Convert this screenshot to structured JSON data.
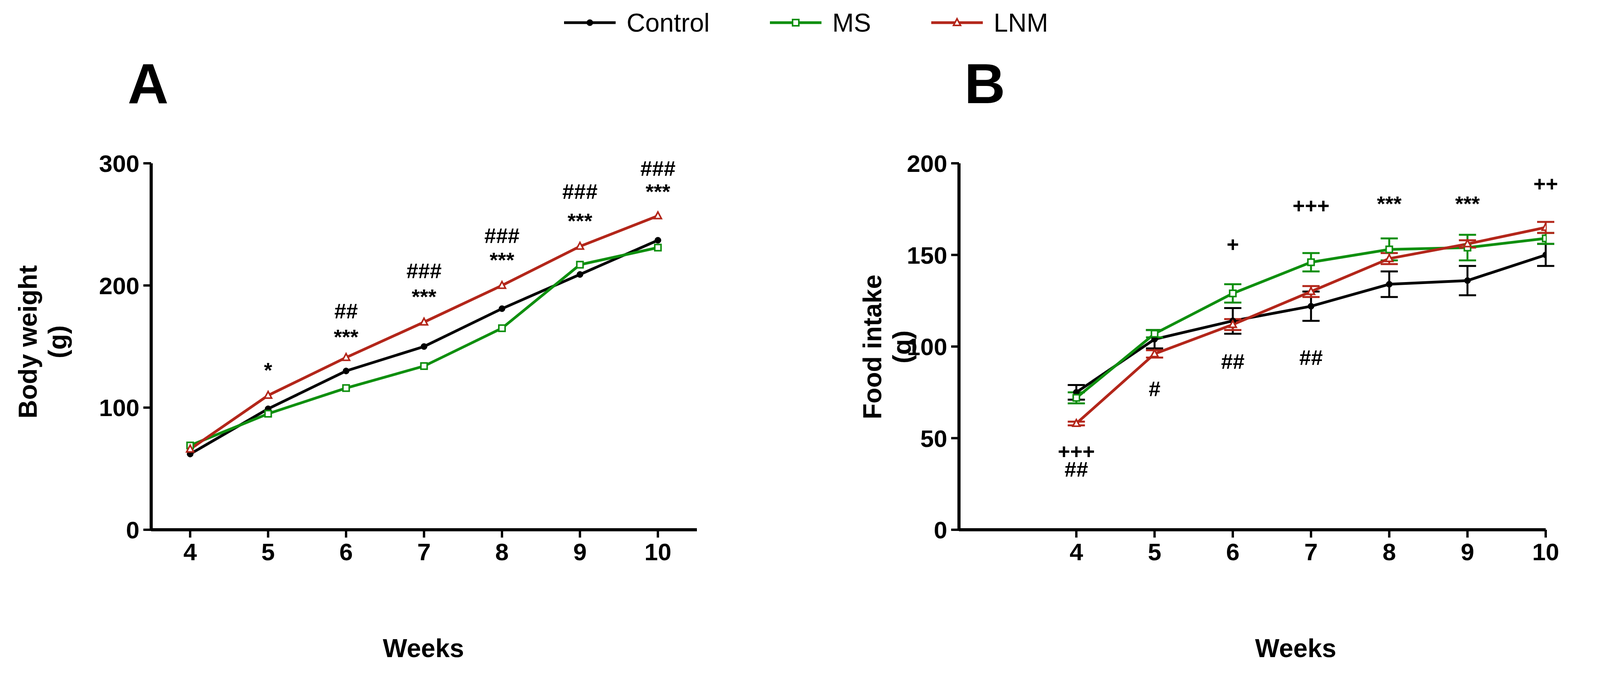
{
  "chart_data": [
    {
      "type": "line",
      "title": "A",
      "x_label": "Weeks",
      "y_label": "Body weight\n(g)",
      "legend": "top",
      "x": [
        4,
        5,
        6,
        7,
        8,
        9,
        10
      ],
      "xlim": [
        3.5,
        10.5
      ],
      "xticks": [
        4,
        5,
        6,
        7,
        8,
        9,
        10
      ],
      "ylim": [
        0,
        300
      ],
      "yticks": [
        0,
        100,
        200,
        300
      ],
      "series": [
        {
          "name": "Control",
          "color": "#000000",
          "marker": "circle",
          "values": [
            62,
            99,
            130,
            150,
            181,
            209,
            237
          ]
        },
        {
          "name": "MS",
          "color": "#0f8f0f",
          "marker": "square",
          "values": [
            69,
            95,
            116,
            134,
            165,
            217,
            231
          ]
        },
        {
          "name": "LNM",
          "color": "#b3261a",
          "marker": "triangle",
          "values": [
            66,
            110,
            141,
            170,
            200,
            232,
            257
          ]
        }
      ],
      "annotations": [
        {
          "x": 5,
          "y": 131,
          "text": "*"
        },
        {
          "x": 6,
          "y": 179,
          "text": "##"
        },
        {
          "x": 6,
          "y": 158,
          "text": "***"
        },
        {
          "x": 7,
          "y": 212,
          "text": "###"
        },
        {
          "x": 7,
          "y": 191,
          "text": "***"
        },
        {
          "x": 8,
          "y": 241,
          "text": "###"
        },
        {
          "x": 8,
          "y": 221,
          "text": "***"
        },
        {
          "x": 9,
          "y": 277,
          "text": "###"
        },
        {
          "x": 9,
          "y": 253,
          "text": "***"
        },
        {
          "x": 10,
          "y": 296,
          "text": "###"
        },
        {
          "x": 10,
          "y": 277,
          "text": "***"
        }
      ]
    },
    {
      "type": "line",
      "title": "B",
      "x_label": "Weeks",
      "y_label": "Food intake\n(g)",
      "x": [
        4,
        5,
        6,
        7,
        8,
        9,
        10
      ],
      "xlim": [
        2.5,
        10
      ],
      "xticks": [
        4,
        5,
        6,
        7,
        8,
        9,
        10
      ],
      "ylim": [
        0,
        200
      ],
      "yticks": [
        0,
        50,
        100,
        150,
        200
      ],
      "series": [
        {
          "name": "Control",
          "color": "#000000",
          "marker": "circle",
          "values": [
            75,
            104,
            114,
            122,
            134,
            136,
            150
          ],
          "errors": [
            4,
            5,
            7,
            8,
            7,
            8,
            6
          ]
        },
        {
          "name": "MS",
          "color": "#0f8f0f",
          "marker": "square",
          "values": [
            72,
            107,
            129,
            146,
            153,
            154,
            159
          ],
          "errors": [
            3,
            2,
            5,
            5,
            6,
            7,
            3
          ]
        },
        {
          "name": "LNM",
          "color": "#b3261a",
          "marker": "triangle",
          "values": [
            58,
            96,
            112,
            130,
            148,
            156,
            165
          ],
          "errors": [
            1,
            2,
            3,
            3,
            3,
            2,
            3
          ]
        }
      ],
      "annotations": [
        {
          "x": 4,
          "y": 43,
          "text": "+++"
        },
        {
          "x": 4,
          "y": 33,
          "text": "##"
        },
        {
          "x": 5,
          "y": 77,
          "text": "#"
        },
        {
          "x": 6,
          "y": 156,
          "text": "+"
        },
        {
          "x": 6,
          "y": 92,
          "text": "##"
        },
        {
          "x": 7,
          "y": 177,
          "text": "+++"
        },
        {
          "x": 7,
          "y": 94,
          "text": "##"
        },
        {
          "x": 8,
          "y": 178,
          "text": "***"
        },
        {
          "x": 9,
          "y": 178,
          "text": "***"
        },
        {
          "x": 10,
          "y": 189,
          "text": "++"
        }
      ]
    }
  ]
}
